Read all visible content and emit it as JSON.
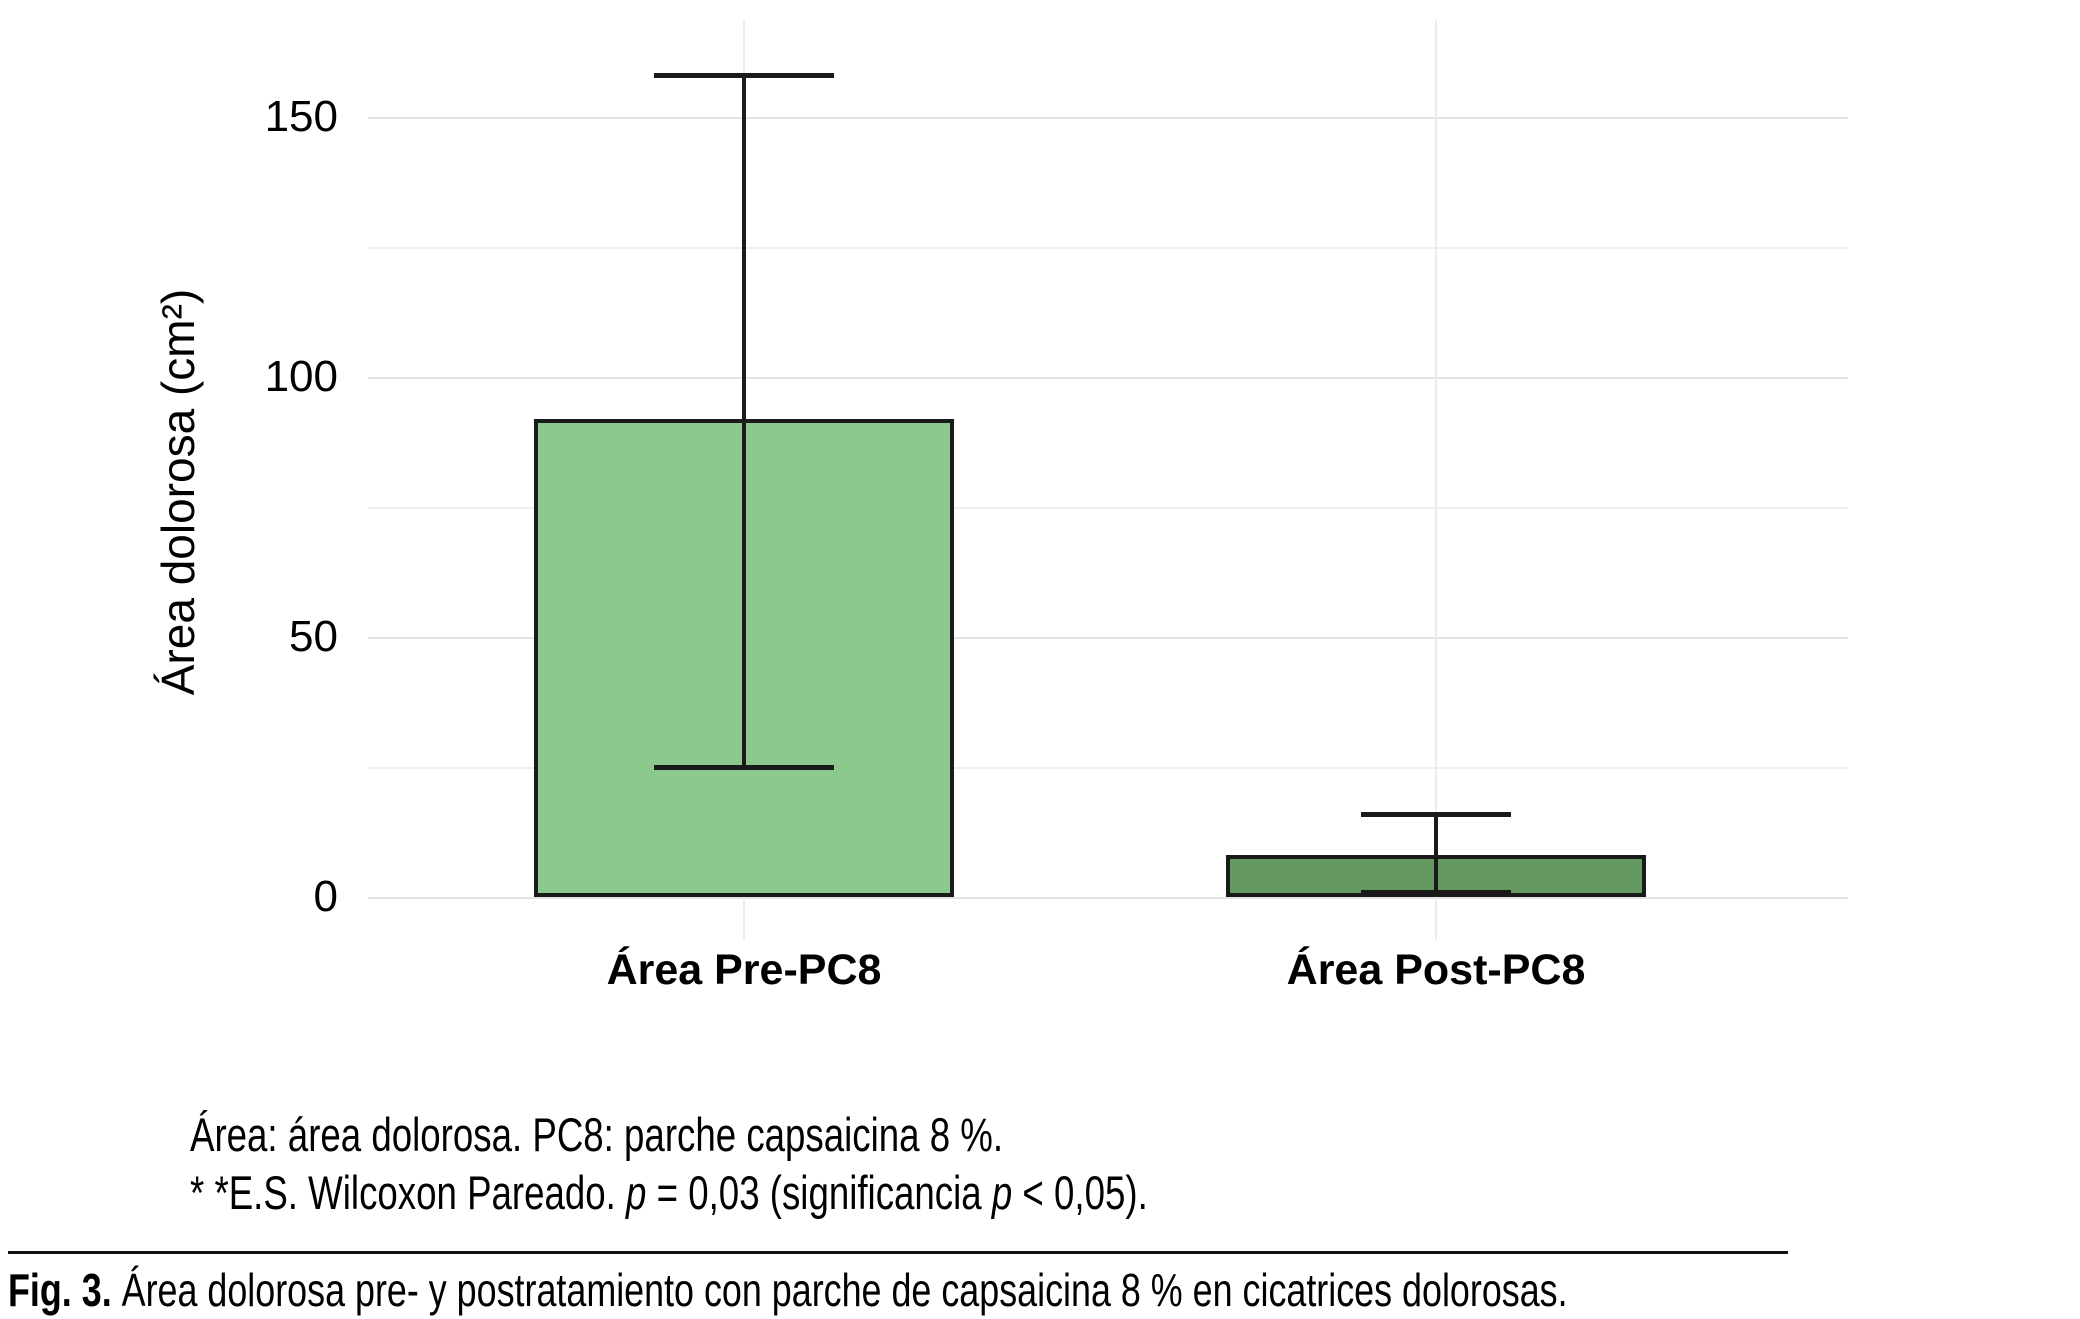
{
  "chart_data": {
    "type": "bar",
    "title": "",
    "categories": [
      "Área Pre-PC8",
      "Área Post-PC8"
    ],
    "values": [
      92,
      8
    ],
    "error_bars": [
      {
        "low": 25,
        "high": 158
      },
      {
        "low": 1,
        "high": 16
      }
    ],
    "xlabel": "",
    "ylabel": "Área dolorosa (cm²)",
    "ytick_labels": [
      "150",
      "100",
      "50",
      "0"
    ],
    "yticks": [
      150,
      100,
      50,
      0
    ],
    "ylim": [
      0,
      165
    ],
    "gridlines_every": 25,
    "grid": "horizontal light-gray lines every 25 units plus one faint vertical line through each bar center; no dark axis lines",
    "legend_position": "none",
    "bar_colors": [
      "#8cc98c",
      "#649a60"
    ],
    "bar_border_color": "#1a1a1a"
  },
  "notes": {
    "line1": "Área: área dolorosa. PC8: parche capsaicina 8 %.",
    "line2_parts": [
      "* *E.S. Wilcoxon Pareado. ",
      "p",
      " = 0,03 (significancia ",
      "p",
      " < 0,05)."
    ]
  },
  "caption": {
    "label": "Fig. 3.",
    "text": " Área dolorosa pre- y postratamiento con parche de capsaicina 8 % en cicatrices dolorosas."
  }
}
